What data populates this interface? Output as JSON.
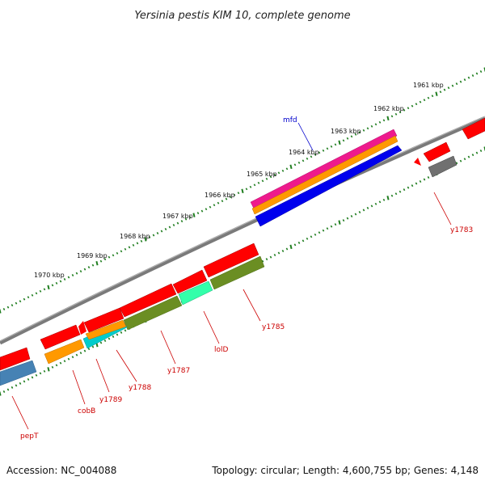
{
  "title": "Yersinia pestis KIM 10, complete genome",
  "kbp_labels": [
    {
      "id": "1961",
      "text": "1961 kbp"
    },
    {
      "id": "1962",
      "text": "1962 kbp"
    },
    {
      "id": "1963",
      "text": "1963 kbp"
    },
    {
      "id": "1964",
      "text": "1964 kbp"
    },
    {
      "id": "1965",
      "text": "1965 kbp"
    },
    {
      "id": "1966",
      "text": "1966 kbp"
    },
    {
      "id": "1967",
      "text": "1967 kbp"
    },
    {
      "id": "1968",
      "text": "1968 kbp"
    },
    {
      "id": "1969",
      "text": "1969 kbp"
    },
    {
      "id": "1970",
      "text": "1970 kbp"
    }
  ],
  "gene_labels": [
    {
      "id": "mfd",
      "text": "mfd",
      "color": "#0000cc"
    },
    {
      "id": "y1783",
      "text": "y1783",
      "color": "#cc0000"
    },
    {
      "id": "y1785",
      "text": "y1785",
      "color": "#cc0000"
    },
    {
      "id": "lolD",
      "text": "lolD",
      "color": "#cc0000"
    },
    {
      "id": "y1787",
      "text": "y1787",
      "color": "#cc0000"
    },
    {
      "id": "y1788",
      "text": "y1788",
      "color": "#cc0000"
    },
    {
      "id": "y1789",
      "text": "y1789",
      "color": "#cc0000"
    },
    {
      "id": "cobB",
      "text": "cobB",
      "color": "#cc0000"
    },
    {
      "id": "pepT",
      "text": "pepT",
      "color": "#cc0000"
    }
  ],
  "colors": {
    "backbone": "#808080",
    "tick_green": "#1e7d1e",
    "gene_red": "#ff0000",
    "gene_magenta": "#ee1a8c",
    "gene_orange": "#ff9900",
    "gene_blue": "#0000ee",
    "gene_gray": "#707070",
    "gene_olive": "#6b8e23",
    "gene_cyan": "#00cccc",
    "gene_aqua": "#33ffaa",
    "gene_steelblue": "#4682b4"
  },
  "footer": {
    "accession": "Accession: NC_004088",
    "summary": "Topology: circular; Length: 4,600,755 bp; Genes: 4,148"
  }
}
